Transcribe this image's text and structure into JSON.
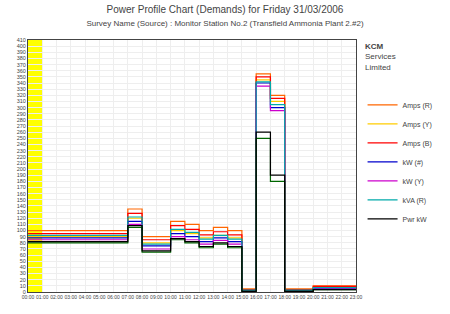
{
  "chart_data": {
    "type": "line",
    "line_style": "step",
    "title": "Power Profile Chart (Demands) for Friday 31/03/2006",
    "subtitle": "Survey Name (Source) : Monitor Station No.2 (Transfield Ammonia Plant 2.#2)",
    "categories": [
      "00:00",
      "01:00",
      "02:00",
      "03:00",
      "04:00",
      "05:00",
      "06:00",
      "07:00",
      "08:00",
      "09:00",
      "10:00",
      "11:00",
      "12:00",
      "13:00",
      "14:00",
      "15:00",
      "16:00",
      "17:00",
      "18:00",
      "19:00",
      "20:00",
      "21:00",
      "22:00",
      "23:00"
    ],
    "series": [
      {
        "name": "Amps (R)",
        "color": "#ff6600",
        "values": [
          100,
          100,
          100,
          100,
          100,
          100,
          100,
          135,
          90,
          90,
          115,
          110,
          100,
          105,
          100,
          5,
          355,
          320,
          5,
          5,
          10,
          10,
          10,
          10
        ]
      },
      {
        "name": "Amps (Y)",
        "color": "#ffcc00",
        "values": [
          90,
          90,
          90,
          90,
          90,
          90,
          90,
          120,
          80,
          80,
          100,
          95,
          88,
          92,
          88,
          3,
          345,
          310,
          3,
          3,
          8,
          8,
          8,
          8
        ]
      },
      {
        "name": "Amps (B)",
        "color": "#ff0000",
        "values": [
          95,
          95,
          95,
          95,
          95,
          95,
          95,
          128,
          85,
          85,
          108,
          102,
          93,
          98,
          93,
          4,
          350,
          315,
          4,
          4,
          9,
          9,
          9,
          9
        ]
      },
      {
        "name": "kW (#)",
        "color": "#0000cc",
        "values": [
          88,
          88,
          88,
          88,
          88,
          88,
          88,
          115,
          75,
          75,
          95,
          90,
          82,
          88,
          82,
          2,
          340,
          300,
          2,
          2,
          6,
          6,
          6,
          6
        ]
      },
      {
        "name": "kW (Y)",
        "color": "#cc00cc",
        "values": [
          85,
          85,
          85,
          85,
          85,
          85,
          85,
          110,
          70,
          70,
          90,
          85,
          78,
          84,
          78,
          2,
          335,
          295,
          2,
          2,
          5,
          5,
          5,
          5
        ]
      },
      {
        "name": "kVA (R)",
        "color": "#00aaaa",
        "values": [
          92,
          92,
          92,
          92,
          92,
          92,
          92,
          122,
          78,
          78,
          102,
          97,
          86,
          92,
          86,
          3,
          342,
          305,
          3,
          3,
          7,
          7,
          7,
          7
        ]
      },
      {
        "color": "#006600",
        "values": [
          80,
          80,
          80,
          80,
          80,
          80,
          80,
          105,
          65,
          65,
          85,
          80,
          72,
          78,
          72,
          1,
          250,
          180,
          1,
          1,
          4,
          4,
          4,
          4
        ]
      },
      {
        "name": "Pwr kW",
        "color": "#000000",
        "values": [
          82,
          82,
          82,
          82,
          82,
          82,
          82,
          108,
          67,
          67,
          87,
          82,
          74,
          80,
          74,
          1,
          260,
          190,
          1,
          1,
          4,
          4,
          4,
          4
        ]
      }
    ],
    "ylim": [
      0,
      410
    ],
    "yticks": [
      0,
      10,
      20,
      30,
      40,
      50,
      60,
      70,
      80,
      90,
      100,
      110,
      120,
      130,
      140,
      150,
      160,
      170,
      180,
      190,
      200,
      210,
      220,
      230,
      240,
      250,
      260,
      270,
      280,
      290,
      300,
      310,
      320,
      330,
      340,
      350,
      360,
      370,
      380,
      390,
      400,
      410
    ],
    "grid": true,
    "shade": {
      "from": "00:00",
      "to": "01:00",
      "color": "#ffff00"
    },
    "annotations": [
      "KCM",
      "Services",
      "Limited"
    ]
  }
}
